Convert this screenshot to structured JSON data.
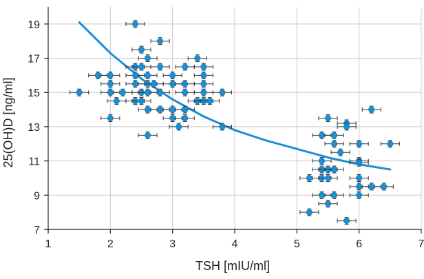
{
  "chart_data": {
    "type": "scatter",
    "xlabel": "TSH [mIU/ml]",
    "ylabel": "25(OH)D [ng/ml]",
    "xlim": [
      1,
      7
    ],
    "ylim": [
      7,
      20
    ],
    "xticks": [
      1,
      2,
      3,
      4,
      5,
      6,
      7
    ],
    "yticks": [
      7,
      9,
      11,
      13,
      15,
      17,
      19
    ],
    "grid": true,
    "point_color": "#1a8fd6",
    "curve_color": "#1a8fd6",
    "error_bar_color": "#333333",
    "points": [
      {
        "x": 2.4,
        "y": 19.0
      },
      {
        "x": 2.5,
        "y": 17.5
      },
      {
        "x": 2.8,
        "y": 18.0
      },
      {
        "x": 1.8,
        "y": 16.0
      },
      {
        "x": 2.0,
        "y": 16.0
      },
      {
        "x": 2.4,
        "y": 16.0
      },
      {
        "x": 2.6,
        "y": 17.0
      },
      {
        "x": 2.4,
        "y": 16.5
      },
      {
        "x": 2.5,
        "y": 16.5
      },
      {
        "x": 2.8,
        "y": 16.5
      },
      {
        "x": 2.6,
        "y": 16.0
      },
      {
        "x": 3.0,
        "y": 16.0
      },
      {
        "x": 3.2,
        "y": 16.5
      },
      {
        "x": 3.4,
        "y": 17.0
      },
      {
        "x": 3.5,
        "y": 16.5
      },
      {
        "x": 3.5,
        "y": 16.0
      },
      {
        "x": 1.5,
        "y": 15.0
      },
      {
        "x": 2.0,
        "y": 15.5
      },
      {
        "x": 2.0,
        "y": 15.0
      },
      {
        "x": 2.2,
        "y": 15.0
      },
      {
        "x": 2.1,
        "y": 14.5
      },
      {
        "x": 2.4,
        "y": 15.5
      },
      {
        "x": 2.5,
        "y": 15.0
      },
      {
        "x": 2.6,
        "y": 15.5
      },
      {
        "x": 2.6,
        "y": 15.0
      },
      {
        "x": 2.7,
        "y": 15.5
      },
      {
        "x": 2.8,
        "y": 15.0
      },
      {
        "x": 3.0,
        "y": 15.5
      },
      {
        "x": 3.2,
        "y": 15.5
      },
      {
        "x": 3.2,
        "y": 15.0
      },
      {
        "x": 3.5,
        "y": 15.5
      },
      {
        "x": 3.5,
        "y": 15.0
      },
      {
        "x": 3.8,
        "y": 15.0
      },
      {
        "x": 2.4,
        "y": 14.5
      },
      {
        "x": 2.5,
        "y": 14.5
      },
      {
        "x": 2.6,
        "y": 14.0
      },
      {
        "x": 2.8,
        "y": 14.0
      },
      {
        "x": 3.0,
        "y": 14.0
      },
      {
        "x": 3.0,
        "y": 13.5
      },
      {
        "x": 3.2,
        "y": 14.0
      },
      {
        "x": 3.2,
        "y": 13.5
      },
      {
        "x": 3.4,
        "y": 14.5
      },
      {
        "x": 3.5,
        "y": 14.5
      },
      {
        "x": 3.6,
        "y": 14.5
      },
      {
        "x": 2.0,
        "y": 13.5
      },
      {
        "x": 3.1,
        "y": 13.0
      },
      {
        "x": 3.8,
        "y": 13.0
      },
      {
        "x": 2.6,
        "y": 12.5
      },
      {
        "x": 6.2,
        "y": 14.0
      },
      {
        "x": 5.5,
        "y": 13.5
      },
      {
        "x": 5.8,
        "y": 13.2
      },
      {
        "x": 5.8,
        "y": 13.0
      },
      {
        "x": 5.4,
        "y": 12.5
      },
      {
        "x": 5.6,
        "y": 12.5
      },
      {
        "x": 5.6,
        "y": 12.0
      },
      {
        "x": 6.0,
        "y": 12.0
      },
      {
        "x": 6.5,
        "y": 12.0
      },
      {
        "x": 5.7,
        "y": 11.5
      },
      {
        "x": 5.4,
        "y": 11.0
      },
      {
        "x": 6.0,
        "y": 11.0
      },
      {
        "x": 6.0,
        "y": 10.9
      },
      {
        "x": 5.2,
        "y": 10.0
      },
      {
        "x": 5.4,
        "y": 10.5
      },
      {
        "x": 5.5,
        "y": 10.5
      },
      {
        "x": 5.6,
        "y": 10.5
      },
      {
        "x": 5.4,
        "y": 10.0
      },
      {
        "x": 5.5,
        "y": 10.0
      },
      {
        "x": 6.0,
        "y": 10.0
      },
      {
        "x": 6.0,
        "y": 9.5
      },
      {
        "x": 6.2,
        "y": 9.5
      },
      {
        "x": 6.4,
        "y": 9.5
      },
      {
        "x": 5.4,
        "y": 9.0
      },
      {
        "x": 5.6,
        "y": 9.0
      },
      {
        "x": 6.0,
        "y": 9.0
      },
      {
        "x": 5.5,
        "y": 8.5
      },
      {
        "x": 5.2,
        "y": 8.0
      },
      {
        "x": 5.8,
        "y": 7.5
      }
    ],
    "fit_curve": {
      "x_range": [
        1.5,
        6.5
      ],
      "values": [
        {
          "x": 1.5,
          "y": 19.1
        },
        {
          "x": 2.0,
          "y": 17.3
        },
        {
          "x": 2.5,
          "y": 15.8
        },
        {
          "x": 3.0,
          "y": 14.6
        },
        {
          "x": 3.5,
          "y": 13.6
        },
        {
          "x": 4.0,
          "y": 12.8
        },
        {
          "x": 4.5,
          "y": 12.2
        },
        {
          "x": 5.0,
          "y": 11.7
        },
        {
          "x": 5.5,
          "y": 11.2
        },
        {
          "x": 6.0,
          "y": 10.8
        },
        {
          "x": 6.5,
          "y": 10.5
        }
      ]
    }
  }
}
